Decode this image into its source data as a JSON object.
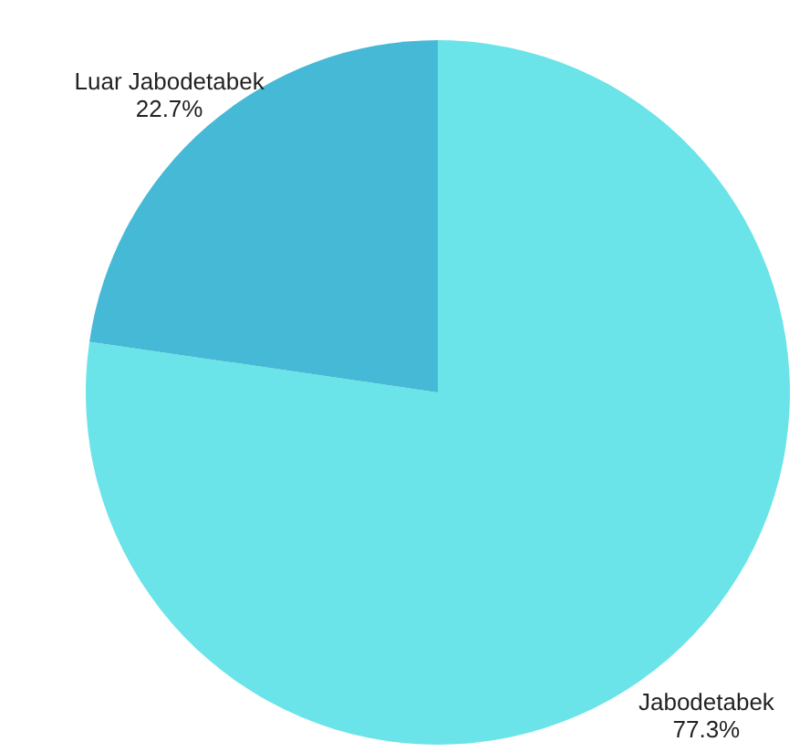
{
  "chart_data": {
    "type": "pie",
    "categories": [
      "Jabodetabek",
      "Luar Jabodetabek"
    ],
    "values": [
      77.3,
      22.7
    ],
    "colors": [
      "#6ae4e8",
      "#45b9d6"
    ],
    "value_labels": [
      "77.3%",
      "22.7%"
    ]
  }
}
